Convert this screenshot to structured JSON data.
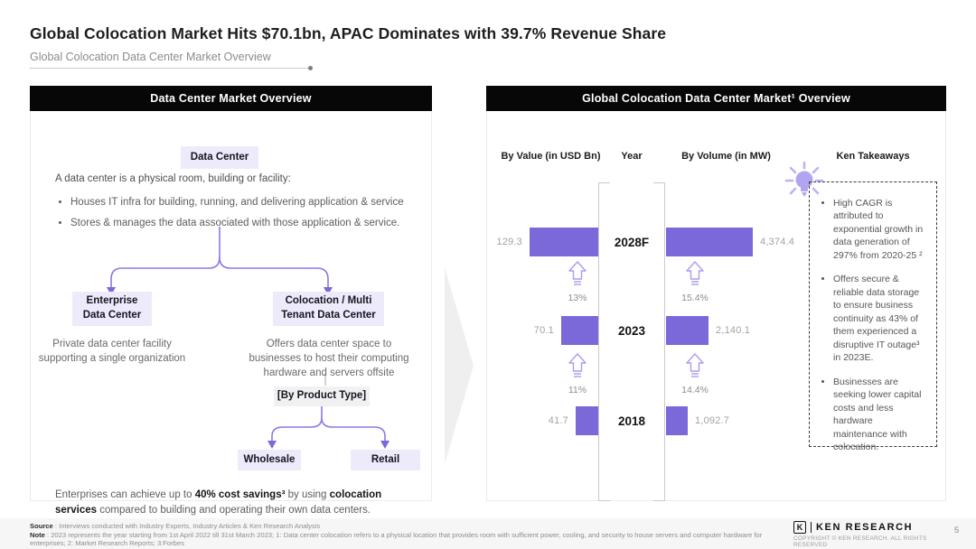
{
  "page": {
    "title": "Global Colocation Market Hits $70.1bn, APAC Dominates with 39.7% Revenue Share",
    "subtitle": "Global Colocation Data Center Market Overview",
    "page_number": "5"
  },
  "colors": {
    "bar_purple": "#7b68d9",
    "lavender_chip": "#edebfb",
    "connector_purple": "#8b7ae4",
    "header_black": "#070707"
  },
  "left_panel": {
    "header": "Data Center Market Overview",
    "root_label": "Data Center",
    "intro": "A data center is a physical room, building or facility:",
    "bullets": [
      "Houses IT infra for building, running, and delivering application & service",
      "Stores & manages the data associated with those application & service."
    ],
    "enterprise": {
      "label": "Enterprise\nData Center",
      "description": "Private data center facility\nsupporting a single organization"
    },
    "colocation": {
      "label": "Colocation / Multi\nTenant Data Center",
      "description": "Offers data center space to\nbusinesses to host their computing\nhardware and servers offsite"
    },
    "product_type_label": "[By Product Type]",
    "product_types": {
      "wholesale": "Wholesale",
      "retail": "Retail"
    },
    "footnote_segments": [
      {
        "text": "Enterprises can achieve up to ",
        "bold": false
      },
      {
        "text": "40% cost savings³",
        "bold": true
      },
      {
        "text": " by using ",
        "bold": false
      },
      {
        "text": "colocation services",
        "bold": true
      },
      {
        "text": " compared to building and operating their own data centers.",
        "bold": false
      }
    ]
  },
  "right_panel": {
    "header": "Global Colocation Data Center Market¹ Overview",
    "columns": {
      "value": "By Value (in USD Bn)",
      "year": "Year",
      "volume": "By Volume (in MW)",
      "takeaways": "Ken Takeaways"
    },
    "chart": {
      "rows": [
        {
          "year": "2028F",
          "value": 129.3,
          "value_label": "129.3",
          "volume": 4374.4,
          "volume_label": "4,374.4"
        },
        {
          "year": "2023",
          "value": 70.1,
          "value_label": "70.1",
          "volume": 2140.1,
          "volume_label": "2,140.1"
        },
        {
          "year": "2018",
          "value": 41.7,
          "value_label": "41.7",
          "volume": 1092.7,
          "volume_label": "1,092.7"
        }
      ],
      "growth": [
        {
          "value_cagr": "13%",
          "volume_cagr": "15.4%"
        },
        {
          "value_cagr": "11%",
          "volume_cagr": "14.4%"
        }
      ]
    },
    "takeaways": [
      "High CAGR is attributed to exponential growth in data generation of 297% from 2020-25 ²",
      "Offers secure & reliable data storage to ensure business continuity as 43% of them experienced a disruptive IT outage³ in 2023E.",
      "Businesses are seeking lower capital costs and less hardware maintenance with colocation."
    ]
  },
  "chart_data": {
    "type": "bar",
    "subtype": "mirrored horizontal (tornado) bar chart",
    "title": "Global Colocation Data Center Market¹ Overview",
    "categories": [
      "2028F",
      "2023",
      "2018"
    ],
    "series": [
      {
        "name": "By Value (in USD Bn)",
        "side": "left",
        "values": [
          129.3,
          70.1,
          41.7
        ]
      },
      {
        "name": "By Volume (in MW)",
        "side": "right",
        "values": [
          4374.4,
          2140.1,
          1092.7
        ]
      }
    ],
    "cagr_annotations": [
      {
        "between": "2023 to 2028F",
        "value_cagr": "13%",
        "volume_cagr": "15.4%"
      },
      {
        "between": "2018 to 2023",
        "value_cagr": "11%",
        "volume_cagr": "14.4%"
      }
    ],
    "legend_position": "none",
    "grid": false
  },
  "footer": {
    "source_label": "Source",
    "source_text": " : Interviews conducted with Industry Experts, Industry Articles & Ken Research Analysis",
    "note_label": "Note",
    "note_text": " : 2023 represents the year starting from 1st  April 2022 till 31st March 2023; 1: Data center colocation refers to a physical location that provides room with sufficient power, cooling, and security to house servers and computer hardware for enterprises; 2: Market Research Reports; 3:Forbes",
    "brand_initial": "K",
    "brand": "KEN RESEARCH",
    "copyright": "COPYRIGHT © KEN RESEARCH. ALL RIGHTS RESERVED"
  }
}
